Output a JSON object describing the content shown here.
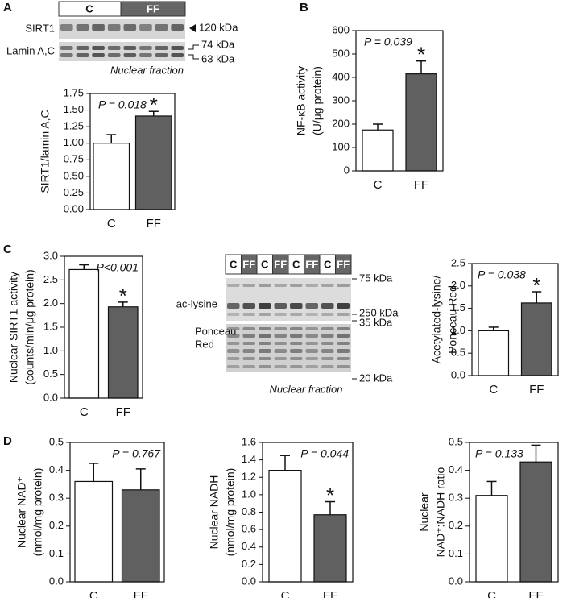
{
  "panels": [
    "A",
    "B",
    "C",
    "D"
  ],
  "blots": {
    "A": {
      "lanes": [
        "C",
        "FF"
      ],
      "rows": [
        "SIRT1",
        "Lamin A,C"
      ],
      "markers": [
        "120 kDa",
        "74 kDa",
        "63 kDa"
      ],
      "caption": "Nuclear fraction"
    },
    "C": {
      "lanes": [
        "C",
        "FF",
        "C",
        "FF",
        "C",
        "FF",
        "C",
        "FF"
      ],
      "rows": [
        "ac-lysine",
        "Ponceau",
        "Red"
      ],
      "markers": [
        "75 kDa",
        "35 kDa",
        "250 kDa",
        "20 kDa"
      ],
      "caption": "Nuclear fraction"
    }
  },
  "chart_data": [
    {
      "type": "bar",
      "y_label": [
        "SIRT1/lamin A,C"
      ],
      "annotation": "P = 0.018",
      "categories": [
        "C",
        "FF"
      ],
      "values": [
        1.0,
        1.41
      ],
      "errors": [
        0.13,
        0.07
      ],
      "colors": [
        "#ffffff",
        "#606060"
      ],
      "significance": [
        null,
        "*"
      ],
      "ylim": [
        0,
        1.75
      ],
      "yticks": [
        {
          "value": 0,
          "label": "0.00"
        },
        0.25,
        {
          "value": 0.5,
          "label": "0.50"
        },
        0.75,
        {
          "value": 1,
          "label": "1.00"
        },
        1.25,
        {
          "value": 1.5,
          "label": "1.50"
        },
        1.75
      ]
    },
    {
      "type": "bar",
      "y_label": [
        "NF-κB activity",
        "(U/μg protein)"
      ],
      "annotation": "P = 0.039",
      "categories": [
        "C",
        "FF"
      ],
      "values": [
        175,
        415
      ],
      "errors": [
        25,
        55
      ],
      "colors": [
        "#ffffff",
        "#606060"
      ],
      "significance": [
        null,
        "*"
      ],
      "ylim": [
        0,
        600
      ],
      "yticks": [
        0,
        100,
        200,
        300,
        400,
        500,
        600
      ]
    },
    {
      "type": "bar",
      "y_label": [
        "Nuclear SIRT1 activity",
        "(counts/min/μg protein)"
      ],
      "annotation": "P<0.001",
      "categories": [
        "C",
        "FF"
      ],
      "values": [
        2.72,
        1.93
      ],
      "errors": [
        0.1,
        0.1
      ],
      "colors": [
        "#ffffff",
        "#606060"
      ],
      "significance": [
        null,
        "*"
      ],
      "ylim": [
        0,
        3
      ],
      "yticks": [
        {
          "value": 0,
          "label": "0.0"
        },
        0.5,
        {
          "value": 1,
          "label": "1.0"
        },
        1.5,
        {
          "value": 2,
          "label": "2.0"
        },
        2.5,
        {
          "value": 3,
          "label": "3.0"
        }
      ]
    },
    {
      "type": "bar",
      "y_label": [
        "Acetylated-lysine/",
        "Ponceau Red"
      ],
      "annotation": "P = 0.038",
      "categories": [
        "C",
        "FF"
      ],
      "values": [
        1.0,
        1.62
      ],
      "errors": [
        0.08,
        0.25
      ],
      "colors": [
        "#ffffff",
        "#606060"
      ],
      "significance": [
        null,
        "*"
      ],
      "ylim": [
        0,
        2.5
      ],
      "yticks": [
        {
          "value": 0,
          "label": "0.0"
        },
        0.5,
        {
          "value": 1,
          "label": "1.0"
        },
        1.5,
        {
          "value": 2,
          "label": "2.0"
        },
        2.5
      ]
    },
    {
      "type": "bar",
      "y_label": [
        "Nuclear NAD⁺",
        "(nmol/mg protein)"
      ],
      "annotation": "P = 0.767",
      "categories": [
        "C",
        "FF"
      ],
      "values": [
        0.36,
        0.33
      ],
      "errors": [
        0.065,
        0.075
      ],
      "colors": [
        "#ffffff",
        "#606060"
      ],
      "ylim": [
        0,
        0.5
      ],
      "yticks": [
        {
          "value": 0,
          "label": "0.0"
        },
        0.1,
        0.2,
        0.3,
        0.4,
        0.5
      ]
    },
    {
      "type": "bar",
      "y_label": [
        "Nuclear NADH",
        "(nmol/mg protein)"
      ],
      "annotation": "P = 0.044",
      "categories": [
        "C",
        "FF"
      ],
      "values": [
        1.28,
        0.77
      ],
      "errors": [
        0.17,
        0.15
      ],
      "colors": [
        "#ffffff",
        "#606060"
      ],
      "significance": [
        null,
        "*"
      ],
      "ylim": [
        0,
        1.6
      ],
      "yticks": [
        {
          "value": 0,
          "label": "0.0"
        },
        0.2,
        0.4,
        0.6,
        0.8,
        {
          "value": 1,
          "label": "1.0"
        },
        1.2,
        1.4,
        1.6
      ]
    },
    {
      "type": "bar",
      "y_label": [
        "Nuclear",
        "NAD⁺:NADH ratio"
      ],
      "annotation": "P = 0.133",
      "categories": [
        "C",
        "FF"
      ],
      "values": [
        0.31,
        0.43
      ],
      "errors": [
        0.05,
        0.06
      ],
      "colors": [
        "#ffffff",
        "#606060"
      ],
      "ylim": [
        0,
        0.5
      ],
      "yticks": [
        {
          "value": 0,
          "label": "0.0"
        },
        0.1,
        0.2,
        0.3,
        0.4,
        0.5
      ]
    }
  ]
}
